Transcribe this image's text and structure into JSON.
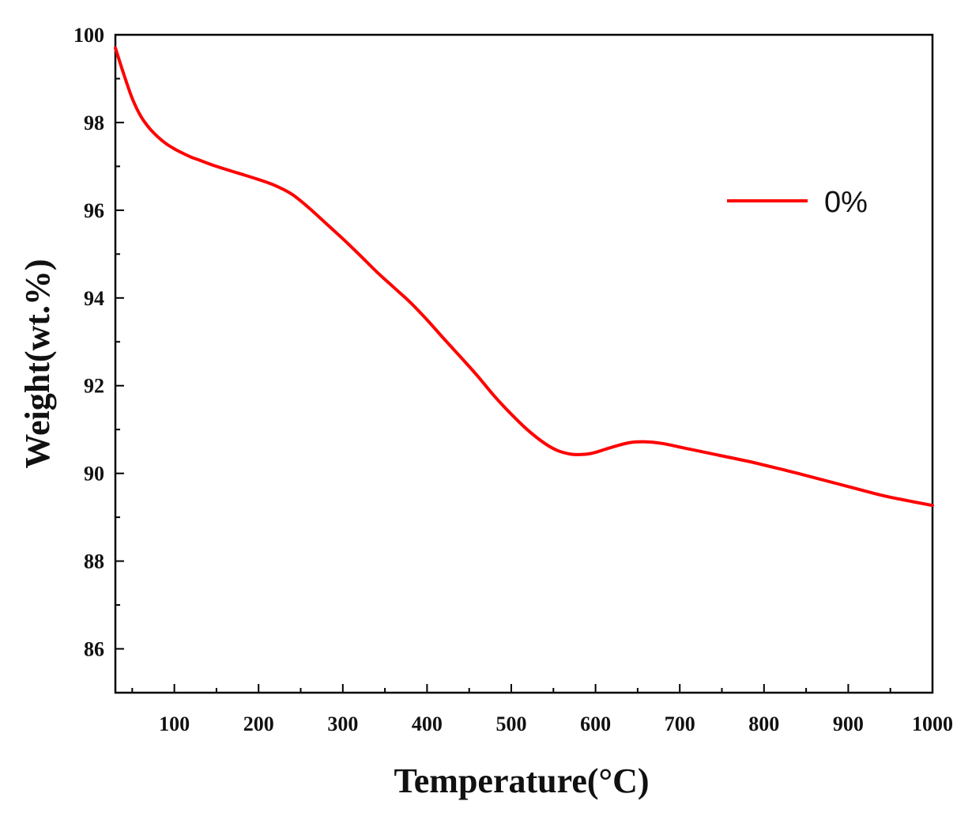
{
  "chart_data": {
    "type": "line",
    "title": "",
    "xlabel": "Temperature(°C)",
    "ylabel": "Weight(wt.%)",
    "xlim": [
      30,
      1000
    ],
    "ylim": [
      85,
      100
    ],
    "x_ticks": [
      100,
      200,
      300,
      400,
      500,
      600,
      700,
      800,
      900,
      1000
    ],
    "y_ticks": [
      86,
      88,
      90,
      92,
      94,
      96,
      98,
      100
    ],
    "grid": false,
    "legend_position": "top-right",
    "series": [
      {
        "name": "0%",
        "color": "#ff0000",
        "x": [
          30,
          40,
          50,
          60,
          70,
          80,
          90,
          100,
          110,
          120,
          130,
          150,
          175,
          200,
          220,
          240,
          260,
          280,
          300,
          320,
          340,
          360,
          380,
          400,
          420,
          440,
          460,
          480,
          500,
          520,
          540,
          555,
          570,
          580,
          590,
          600,
          620,
          640,
          660,
          680,
          700,
          720,
          750,
          780,
          800,
          830,
          860,
          900,
          940,
          970,
          1000
        ],
        "values": [
          99.7,
          99.1,
          98.55,
          98.15,
          97.88,
          97.68,
          97.52,
          97.4,
          97.3,
          97.21,
          97.14,
          97.0,
          96.85,
          96.7,
          96.56,
          96.36,
          96.05,
          95.7,
          95.35,
          94.98,
          94.6,
          94.25,
          93.9,
          93.5,
          93.07,
          92.65,
          92.22,
          91.76,
          91.35,
          90.98,
          90.68,
          90.52,
          90.44,
          90.43,
          90.44,
          90.48,
          90.6,
          90.7,
          90.72,
          90.68,
          90.6,
          90.52,
          90.4,
          90.28,
          90.19,
          90.05,
          89.9,
          89.7,
          89.5,
          89.38,
          89.27
        ]
      }
    ]
  }
}
